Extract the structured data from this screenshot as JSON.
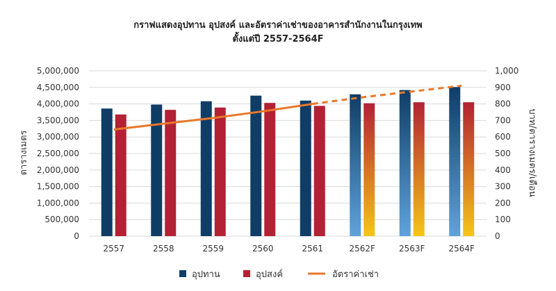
{
  "chart_data": {
    "type": "bar",
    "title_line1": "กราฟแสดงอุปทาน อุปสงค์ และอัตราค่าเช่าของอาคารสำนักงานในกรุงเทพ",
    "title_line2": "ตั้งแต่ปี 2557-2564F",
    "ylabel_left": "ตารางเมตร",
    "ylabel_right": "บาท/ตารางเมตร/เดือน",
    "left_axis": {
      "min": 0,
      "max": 5000000,
      "step": 500000,
      "ticks": [
        "0",
        "500,000",
        "1,000,000",
        "1,500,000",
        "2,000,000",
        "2,500,000",
        "3,000,000",
        "3,500,000",
        "4,000,000",
        "4,500,000",
        "5,000,000"
      ]
    },
    "right_axis": {
      "min": 0,
      "max": 1000,
      "step": 100,
      "ticks": [
        "0",
        "100",
        "200",
        "300",
        "400",
        "500",
        "600",
        "700",
        "800",
        "900",
        "1,000"
      ]
    },
    "categories": [
      "2557",
      "2558",
      "2559",
      "2560",
      "2561",
      "2562F",
      "2563F",
      "2564F"
    ],
    "forecast_from_index": 5,
    "series": [
      {
        "name": "อุปทาน",
        "kind": "bar",
        "axis": "left",
        "color": "#0f3d66",
        "forecast_color_top": "#0f3d66",
        "forecast_color_bottom": "#5fa3dc",
        "values": [
          3860000,
          3980000,
          4080000,
          4250000,
          4100000,
          4290000,
          4420000,
          4510000
        ]
      },
      {
        "name": "อุปสงค์",
        "kind": "bar",
        "axis": "left",
        "color": "#b22234",
        "forecast_color_top": "#b22234",
        "forecast_color_bottom": "#f5c518",
        "values": [
          3680000,
          3820000,
          3890000,
          4030000,
          3940000,
          4020000,
          4050000,
          4050000
        ]
      },
      {
        "name": "อัตราค่าเช่า",
        "kind": "line",
        "axis": "right",
        "color": "#e8782a",
        "values": [
          645,
          680,
          715,
          755,
          800,
          840,
          875,
          910
        ]
      }
    ],
    "legend": {
      "position": "bottom",
      "items": [
        {
          "label": "อุปทาน",
          "color": "#0f3d66",
          "shape": "square"
        },
        {
          "label": "อุปสงค์",
          "color": "#b22234",
          "shape": "square"
        },
        {
          "label": "อัตราค่าเช่า",
          "color": "#e8782a",
          "shape": "line"
        }
      ]
    },
    "grid": true
  }
}
